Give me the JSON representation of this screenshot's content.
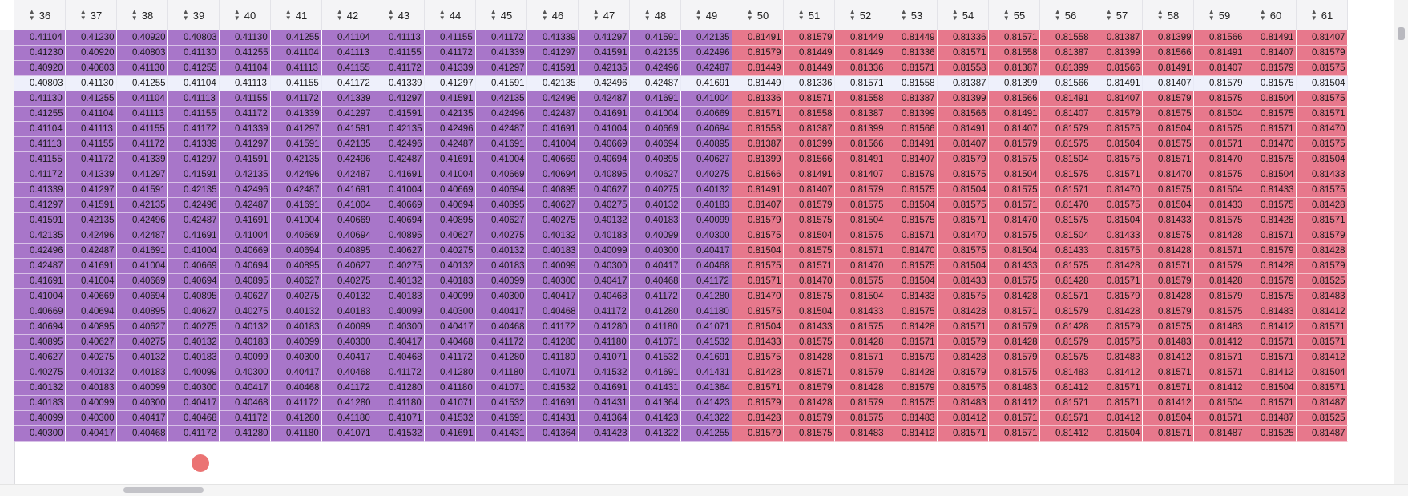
{
  "columns": [
    "36",
    "37",
    "38",
    "39",
    "40",
    "41",
    "42",
    "43",
    "44",
    "45",
    "46",
    "47",
    "48",
    "49",
    "50",
    "51",
    "52",
    "53",
    "54",
    "55",
    "56",
    "57",
    "58",
    "59",
    "60",
    "61"
  ],
  "icons": {
    "sort": "sort-updown-icon"
  },
  "colors": {
    "purple": "#a876c9",
    "red": "#e7788c",
    "selected_row": "#eef0fb"
  },
  "selected_row_index": 3,
  "rows": [
    [
      "0.41104",
      "0.41230",
      "0.40920",
      "0.40803",
      "0.41130",
      "0.41255",
      "0.41104",
      "0.41113",
      "0.41155",
      "0.41172",
      "0.41339",
      "0.41297",
      "0.41591",
      "0.42135",
      "0.81491",
      "0.81579",
      "0.81449",
      "0.81449",
      "0.81336",
      "0.81571",
      "0.81558",
      "0.81387",
      "0.81399",
      "0.81566",
      "0.81491",
      "0.81407"
    ],
    [
      "0.41230",
      "0.40920",
      "0.40803",
      "0.41130",
      "0.41255",
      "0.41104",
      "0.41113",
      "0.41155",
      "0.41172",
      "0.41339",
      "0.41297",
      "0.41591",
      "0.42135",
      "0.42496",
      "0.81579",
      "0.81449",
      "0.81449",
      "0.81336",
      "0.81571",
      "0.81558",
      "0.81387",
      "0.81399",
      "0.81566",
      "0.81491",
      "0.81407",
      "0.81579"
    ],
    [
      "0.40920",
      "0.40803",
      "0.41130",
      "0.41255",
      "0.41104",
      "0.41113",
      "0.41155",
      "0.41172",
      "0.41339",
      "0.41297",
      "0.41591",
      "0.42135",
      "0.42496",
      "0.42487",
      "0.81449",
      "0.81449",
      "0.81336",
      "0.81571",
      "0.81558",
      "0.81387",
      "0.81399",
      "0.81566",
      "0.81491",
      "0.81407",
      "0.81579",
      "0.81575"
    ],
    [
      "0.40803",
      "0.41130",
      "0.41255",
      "0.41104",
      "0.41113",
      "0.41155",
      "0.41172",
      "0.41339",
      "0.41297",
      "0.41591",
      "0.42135",
      "0.42496",
      "0.42487",
      "0.41691",
      "0.81449",
      "0.81336",
      "0.81571",
      "0.81558",
      "0.81387",
      "0.81399",
      "0.81566",
      "0.81491",
      "0.81407",
      "0.81579",
      "0.81575",
      "0.81504"
    ],
    [
      "0.41130",
      "0.41255",
      "0.41104",
      "0.41113",
      "0.41155",
      "0.41172",
      "0.41339",
      "0.41297",
      "0.41591",
      "0.42135",
      "0.42496",
      "0.42487",
      "0.41691",
      "0.41004",
      "0.81336",
      "0.81571",
      "0.81558",
      "0.81387",
      "0.81399",
      "0.81566",
      "0.81491",
      "0.81407",
      "0.81579",
      "0.81575",
      "0.81504",
      "0.81575"
    ],
    [
      "0.41255",
      "0.41104",
      "0.41113",
      "0.41155",
      "0.41172",
      "0.41339",
      "0.41297",
      "0.41591",
      "0.42135",
      "0.42496",
      "0.42487",
      "0.41691",
      "0.41004",
      "0.40669",
      "0.81571",
      "0.81558",
      "0.81387",
      "0.81399",
      "0.81566",
      "0.81491",
      "0.81407",
      "0.81579",
      "0.81575",
      "0.81504",
      "0.81575",
      "0.81571"
    ],
    [
      "0.41104",
      "0.41113",
      "0.41155",
      "0.41172",
      "0.41339",
      "0.41297",
      "0.41591",
      "0.42135",
      "0.42496",
      "0.42487",
      "0.41691",
      "0.41004",
      "0.40669",
      "0.40694",
      "0.81558",
      "0.81387",
      "0.81399",
      "0.81566",
      "0.81491",
      "0.81407",
      "0.81579",
      "0.81575",
      "0.81504",
      "0.81575",
      "0.81571",
      "0.81470"
    ],
    [
      "0.41113",
      "0.41155",
      "0.41172",
      "0.41339",
      "0.41297",
      "0.41591",
      "0.42135",
      "0.42496",
      "0.42487",
      "0.41691",
      "0.41004",
      "0.40669",
      "0.40694",
      "0.40895",
      "0.81387",
      "0.81399",
      "0.81566",
      "0.81491",
      "0.81407",
      "0.81579",
      "0.81575",
      "0.81504",
      "0.81575",
      "0.81571",
      "0.81470",
      "0.81575"
    ],
    [
      "0.41155",
      "0.41172",
      "0.41339",
      "0.41297",
      "0.41591",
      "0.42135",
      "0.42496",
      "0.42487",
      "0.41691",
      "0.41004",
      "0.40669",
      "0.40694",
      "0.40895",
      "0.40627",
      "0.81399",
      "0.81566",
      "0.81491",
      "0.81407",
      "0.81579",
      "0.81575",
      "0.81504",
      "0.81575",
      "0.81571",
      "0.81470",
      "0.81575",
      "0.81504"
    ],
    [
      "0.41172",
      "0.41339",
      "0.41297",
      "0.41591",
      "0.42135",
      "0.42496",
      "0.42487",
      "0.41691",
      "0.41004",
      "0.40669",
      "0.40694",
      "0.40895",
      "0.40627",
      "0.40275",
      "0.81566",
      "0.81491",
      "0.81407",
      "0.81579",
      "0.81575",
      "0.81504",
      "0.81575",
      "0.81571",
      "0.81470",
      "0.81575",
      "0.81504",
      "0.81433"
    ],
    [
      "0.41339",
      "0.41297",
      "0.41591",
      "0.42135",
      "0.42496",
      "0.42487",
      "0.41691",
      "0.41004",
      "0.40669",
      "0.40694",
      "0.40895",
      "0.40627",
      "0.40275",
      "0.40132",
      "0.81491",
      "0.81407",
      "0.81579",
      "0.81575",
      "0.81504",
      "0.81575",
      "0.81571",
      "0.81470",
      "0.81575",
      "0.81504",
      "0.81433",
      "0.81575"
    ],
    [
      "0.41297",
      "0.41591",
      "0.42135",
      "0.42496",
      "0.42487",
      "0.41691",
      "0.41004",
      "0.40669",
      "0.40694",
      "0.40895",
      "0.40627",
      "0.40275",
      "0.40132",
      "0.40183",
      "0.81407",
      "0.81579",
      "0.81575",
      "0.81504",
      "0.81575",
      "0.81571",
      "0.81470",
      "0.81575",
      "0.81504",
      "0.81433",
      "0.81575",
      "0.81428"
    ],
    [
      "0.41591",
      "0.42135",
      "0.42496",
      "0.42487",
      "0.41691",
      "0.41004",
      "0.40669",
      "0.40694",
      "0.40895",
      "0.40627",
      "0.40275",
      "0.40132",
      "0.40183",
      "0.40099",
      "0.81579",
      "0.81575",
      "0.81504",
      "0.81575",
      "0.81571",
      "0.81470",
      "0.81575",
      "0.81504",
      "0.81433",
      "0.81575",
      "0.81428",
      "0.81571"
    ],
    [
      "0.42135",
      "0.42496",
      "0.42487",
      "0.41691",
      "0.41004",
      "0.40669",
      "0.40694",
      "0.40895",
      "0.40627",
      "0.40275",
      "0.40132",
      "0.40183",
      "0.40099",
      "0.40300",
      "0.81575",
      "0.81504",
      "0.81575",
      "0.81571",
      "0.81470",
      "0.81575",
      "0.81504",
      "0.81433",
      "0.81575",
      "0.81428",
      "0.81571",
      "0.81579"
    ],
    [
      "0.42496",
      "0.42487",
      "0.41691",
      "0.41004",
      "0.40669",
      "0.40694",
      "0.40895",
      "0.40627",
      "0.40275",
      "0.40132",
      "0.40183",
      "0.40099",
      "0.40300",
      "0.40417",
      "0.81504",
      "0.81575",
      "0.81571",
      "0.81470",
      "0.81575",
      "0.81504",
      "0.81433",
      "0.81575",
      "0.81428",
      "0.81571",
      "0.81579",
      "0.81428"
    ],
    [
      "0.42487",
      "0.41691",
      "0.41004",
      "0.40669",
      "0.40694",
      "0.40895",
      "0.40627",
      "0.40275",
      "0.40132",
      "0.40183",
      "0.40099",
      "0.40300",
      "0.40417",
      "0.40468",
      "0.81575",
      "0.81571",
      "0.81470",
      "0.81575",
      "0.81504",
      "0.81433",
      "0.81575",
      "0.81428",
      "0.81571",
      "0.81579",
      "0.81428",
      "0.81579"
    ],
    [
      "0.41691",
      "0.41004",
      "0.40669",
      "0.40694",
      "0.40895",
      "0.40627",
      "0.40275",
      "0.40132",
      "0.40183",
      "0.40099",
      "0.40300",
      "0.40417",
      "0.40468",
      "0.41172",
      "0.81571",
      "0.81470",
      "0.81575",
      "0.81504",
      "0.81433",
      "0.81575",
      "0.81428",
      "0.81571",
      "0.81579",
      "0.81428",
      "0.81579",
      "0.81525"
    ],
    [
      "0.41004",
      "0.40669",
      "0.40694",
      "0.40895",
      "0.40627",
      "0.40275",
      "0.40132",
      "0.40183",
      "0.40099",
      "0.40300",
      "0.40417",
      "0.40468",
      "0.41172",
      "0.41280",
      "0.81470",
      "0.81575",
      "0.81504",
      "0.81433",
      "0.81575",
      "0.81428",
      "0.81571",
      "0.81579",
      "0.81428",
      "0.81579",
      "0.81575",
      "0.81483"
    ],
    [
      "0.40669",
      "0.40694",
      "0.40895",
      "0.40627",
      "0.40275",
      "0.40132",
      "0.40183",
      "0.40099",
      "0.40300",
      "0.40417",
      "0.40468",
      "0.41172",
      "0.41280",
      "0.41180",
      "0.81575",
      "0.81504",
      "0.81433",
      "0.81575",
      "0.81428",
      "0.81571",
      "0.81579",
      "0.81428",
      "0.81579",
      "0.81575",
      "0.81483",
      "0.81412"
    ],
    [
      "0.40694",
      "0.40895",
      "0.40627",
      "0.40275",
      "0.40132",
      "0.40183",
      "0.40099",
      "0.40300",
      "0.40417",
      "0.40468",
      "0.41172",
      "0.41280",
      "0.41180",
      "0.41071",
      "0.81504",
      "0.81433",
      "0.81575",
      "0.81428",
      "0.81571",
      "0.81579",
      "0.81428",
      "0.81579",
      "0.81575",
      "0.81483",
      "0.81412",
      "0.81571"
    ],
    [
      "0.40895",
      "0.40627",
      "0.40275",
      "0.40132",
      "0.40183",
      "0.40099",
      "0.40300",
      "0.40417",
      "0.40468",
      "0.41172",
      "0.41280",
      "0.41180",
      "0.41071",
      "0.41532",
      "0.81433",
      "0.81575",
      "0.81428",
      "0.81571",
      "0.81579",
      "0.81428",
      "0.81579",
      "0.81575",
      "0.81483",
      "0.81412",
      "0.81571",
      "0.81571"
    ],
    [
      "0.40627",
      "0.40275",
      "0.40132",
      "0.40183",
      "0.40099",
      "0.40300",
      "0.40417",
      "0.40468",
      "0.41172",
      "0.41280",
      "0.41180",
      "0.41071",
      "0.41532",
      "0.41691",
      "0.81575",
      "0.81428",
      "0.81571",
      "0.81579",
      "0.81428",
      "0.81579",
      "0.81575",
      "0.81483",
      "0.81412",
      "0.81571",
      "0.81571",
      "0.81412"
    ],
    [
      "0.40275",
      "0.40132",
      "0.40183",
      "0.40099",
      "0.40300",
      "0.40417",
      "0.40468",
      "0.41172",
      "0.41280",
      "0.41180",
      "0.41071",
      "0.41532",
      "0.41691",
      "0.41431",
      "0.81428",
      "0.81571",
      "0.81579",
      "0.81428",
      "0.81579",
      "0.81575",
      "0.81483",
      "0.81412",
      "0.81571",
      "0.81571",
      "0.81412",
      "0.81504"
    ],
    [
      "0.40132",
      "0.40183",
      "0.40099",
      "0.40300",
      "0.40417",
      "0.40468",
      "0.41172",
      "0.41280",
      "0.41180",
      "0.41071",
      "0.41532",
      "0.41691",
      "0.41431",
      "0.41364",
      "0.81571",
      "0.81579",
      "0.81428",
      "0.81579",
      "0.81575",
      "0.81483",
      "0.81412",
      "0.81571",
      "0.81571",
      "0.81412",
      "0.81504",
      "0.81571"
    ],
    [
      "0.40183",
      "0.40099",
      "0.40300",
      "0.40417",
      "0.40468",
      "0.41172",
      "0.41280",
      "0.41180",
      "0.41071",
      "0.41532",
      "0.41691",
      "0.41431",
      "0.41364",
      "0.41423",
      "0.81579",
      "0.81428",
      "0.81579",
      "0.81575",
      "0.81483",
      "0.81412",
      "0.81571",
      "0.81571",
      "0.81412",
      "0.81504",
      "0.81571",
      "0.81487"
    ],
    [
      "0.40099",
      "0.40300",
      "0.40417",
      "0.40468",
      "0.41172",
      "0.41280",
      "0.41180",
      "0.41071",
      "0.41532",
      "0.41691",
      "0.41431",
      "0.41364",
      "0.41423",
      "0.41322",
      "0.81428",
      "0.81579",
      "0.81575",
      "0.81483",
      "0.81412",
      "0.81571",
      "0.81571",
      "0.81412",
      "0.81504",
      "0.81571",
      "0.81487",
      "0.81525"
    ],
    [
      "0.40300",
      "0.40417",
      "0.40468",
      "0.41172",
      "0.41280",
      "0.41180",
      "0.41071",
      "0.41532",
      "0.41691",
      "0.41431",
      "0.41364",
      "0.41423",
      "0.41322",
      "0.41255",
      "0.81579",
      "0.81575",
      "0.81483",
      "0.81412",
      "0.81571",
      "0.81571",
      "0.81412",
      "0.81504",
      "0.81571",
      "0.81487",
      "0.81525",
      "0.81487"
    ]
  ]
}
